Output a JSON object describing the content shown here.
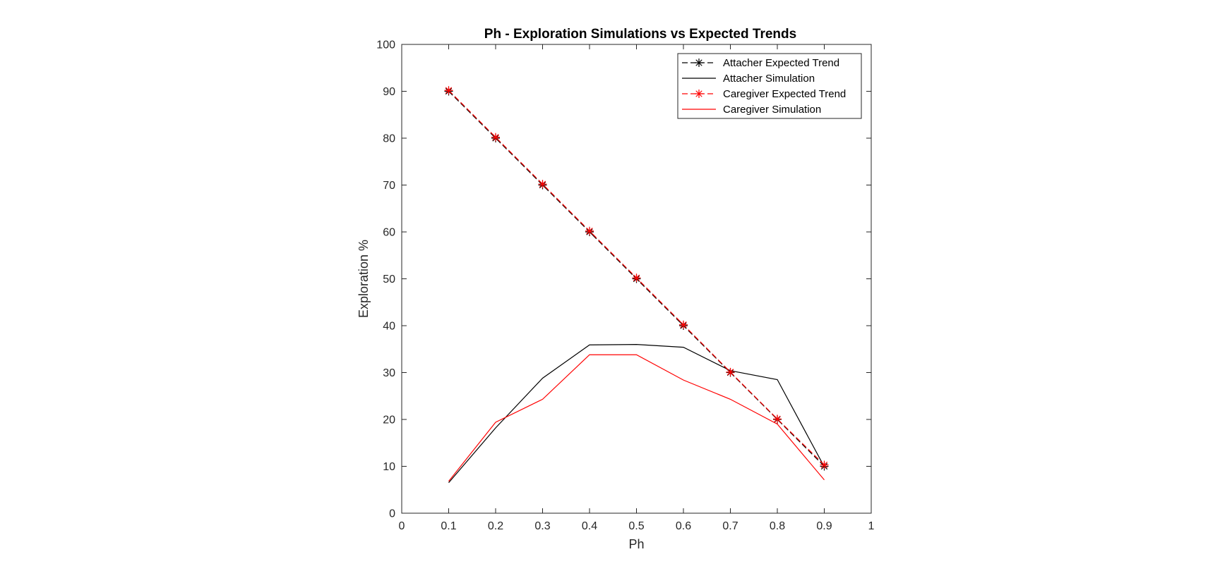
{
  "chart_data": {
    "type": "line",
    "title": "Ph - Exploration Simulations vs Expected Trends",
    "xlabel": "Ph",
    "ylabel": "Exploration %",
    "xlim": [
      0,
      1
    ],
    "ylim": [
      0,
      100
    ],
    "x_ticks": [
      "0",
      "0.1",
      "0.2",
      "0.3",
      "0.4",
      "0.5",
      "0.6",
      "0.7",
      "0.8",
      "0.9",
      "1"
    ],
    "y_ticks": [
      "0",
      "10",
      "20",
      "30",
      "40",
      "50",
      "60",
      "70",
      "80",
      "90",
      "100"
    ],
    "grid": false,
    "legend_position": "top-right",
    "x": [
      0.1,
      0.2,
      0.3,
      0.4,
      0.5,
      0.6,
      0.7,
      0.8,
      0.9
    ],
    "series": [
      {
        "name": "Attacher Expected Trend",
        "color": "#000000",
        "line_style": "dashed",
        "marker": "asterisk",
        "values": [
          90,
          80,
          70,
          60,
          50,
          40,
          30,
          20,
          10
        ]
      },
      {
        "name": "Attacher Simulation",
        "color": "#000000",
        "line_style": "solid",
        "marker": "none",
        "values": [
          6.5,
          18.2,
          28.8,
          35.9,
          36.0,
          35.4,
          30.4,
          28.5,
          9.9
        ]
      },
      {
        "name": "Caregiver Expected Trend",
        "color": "#ff0000",
        "line_style": "dashed",
        "marker": "asterisk",
        "values": [
          90.2,
          80.2,
          70.2,
          60.2,
          50.2,
          40.2,
          30.1,
          20.1,
          10.3
        ]
      },
      {
        "name": "Caregiver Simulation",
        "color": "#ff0000",
        "line_style": "solid",
        "marker": "none",
        "values": [
          6.8,
          19.4,
          24.3,
          33.8,
          33.8,
          28.4,
          24.3,
          19.0,
          7.1
        ]
      }
    ]
  }
}
